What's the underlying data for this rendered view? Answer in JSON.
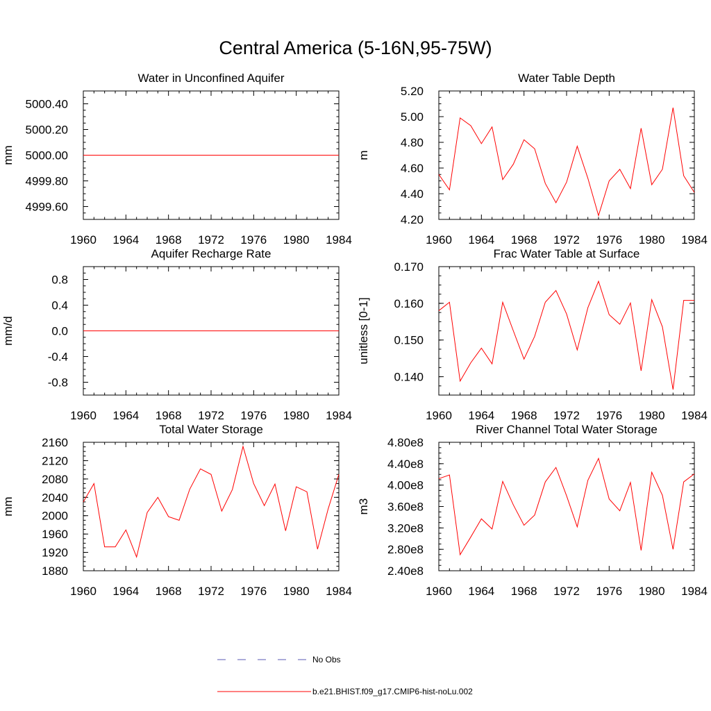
{
  "title": "Central America (5-16N,95-75W)",
  "colors": {
    "model": "#ff0000",
    "obs": "#5a5ab4",
    "axis": "#000000"
  },
  "legend": {
    "placement": "bottom-center",
    "items": [
      {
        "label": "No Obs",
        "style": "dashed",
        "color": "#5a5ab4"
      },
      {
        "label": "b.e21.BHIST.f09_g17.CMIP6-hist-noLu.002",
        "style": "solid",
        "color": "#ff0000"
      }
    ]
  },
  "chart_data": [
    {
      "type": "line",
      "title": "Water in Unconfined Aquifer",
      "ylabel": "mm",
      "xlim": [
        1960,
        1984
      ],
      "ylim": [
        4999.5,
        5000.5
      ],
      "xticks": [
        1960,
        1964,
        1968,
        1972,
        1976,
        1980,
        1984
      ],
      "yticks": [
        4999.6,
        4999.8,
        5000.0,
        5000.2,
        5000.4
      ],
      "ytick_labels": [
        "4999.60",
        "4999.80",
        "5000.00",
        "5000.20",
        "5000.40"
      ],
      "ytick_minor": 0.05,
      "x": [
        1960,
        1961,
        1962,
        1963,
        1964,
        1965,
        1966,
        1967,
        1968,
        1969,
        1970,
        1971,
        1972,
        1973,
        1974,
        1975,
        1976,
        1977,
        1978,
        1979,
        1980,
        1981,
        1982,
        1983,
        1984
      ],
      "series": [
        {
          "values": [
            5000,
            5000,
            5000,
            5000,
            5000,
            5000,
            5000,
            5000,
            5000,
            5000,
            5000,
            5000,
            5000,
            5000,
            5000,
            5000,
            5000,
            5000,
            5000,
            5000,
            5000,
            5000,
            5000,
            5000,
            5000
          ]
        }
      ]
    },
    {
      "type": "line",
      "title": "Water Table Depth",
      "ylabel": "m",
      "xlim": [
        1960,
        1984
      ],
      "ylim": [
        4.2,
        5.2
      ],
      "xticks": [
        1960,
        1964,
        1968,
        1972,
        1976,
        1980,
        1984
      ],
      "yticks": [
        4.2,
        4.4,
        4.6,
        4.8,
        5.0,
        5.2
      ],
      "ytick_labels": [
        "4.20",
        "4.40",
        "4.60",
        "4.80",
        "5.00",
        "5.20"
      ],
      "ytick_minor": 0.05,
      "x": [
        1960,
        1961,
        1962,
        1963,
        1964,
        1965,
        1966,
        1967,
        1968,
        1969,
        1970,
        1971,
        1972,
        1973,
        1974,
        1975,
        1976,
        1977,
        1978,
        1979,
        1980,
        1981,
        1982,
        1983,
        1984
      ],
      "series": [
        {
          "values": [
            4.55,
            4.43,
            4.99,
            4.93,
            4.79,
            4.92,
            4.51,
            4.63,
            4.82,
            4.75,
            4.48,
            4.33,
            4.49,
            4.77,
            4.52,
            4.23,
            4.5,
            4.59,
            4.44,
            4.91,
            4.47,
            4.59,
            5.07,
            4.54,
            4.41
          ]
        }
      ]
    },
    {
      "type": "line",
      "title": "Aquifer Recharge Rate",
      "ylabel": "mm/d",
      "xlim": [
        1960,
        1984
      ],
      "ylim": [
        -1.0,
        1.0
      ],
      "xticks": [
        1960,
        1964,
        1968,
        1972,
        1976,
        1980,
        1984
      ],
      "yticks": [
        -0.8,
        -0.4,
        0.0,
        0.4,
        0.8
      ],
      "ytick_labels": [
        "-0.8",
        "-0.4",
        "0.0",
        "0.4",
        "0.8"
      ],
      "ytick_minor": 0.1,
      "x": [
        1960,
        1961,
        1962,
        1963,
        1964,
        1965,
        1966,
        1967,
        1968,
        1969,
        1970,
        1971,
        1972,
        1973,
        1974,
        1975,
        1976,
        1977,
        1978,
        1979,
        1980,
        1981,
        1982,
        1983,
        1984
      ],
      "series": [
        {
          "values": [
            0,
            0,
            0,
            0,
            0,
            0,
            0,
            0,
            0,
            0,
            0,
            0,
            0,
            0,
            0,
            0,
            0,
            0,
            0,
            0,
            0,
            0,
            0,
            0,
            0
          ]
        }
      ]
    },
    {
      "type": "line",
      "title": "Frac Water Table at Surface",
      "ylabel": "unitless [0-1]",
      "xlim": [
        1960,
        1984
      ],
      "ylim": [
        0.135,
        0.17
      ],
      "xticks": [
        1960,
        1964,
        1968,
        1972,
        1976,
        1980,
        1984
      ],
      "yticks": [
        0.14,
        0.15,
        0.16,
        0.17
      ],
      "ytick_labels": [
        "0.140",
        "0.150",
        "0.160",
        "0.170"
      ],
      "ytick_minor": 0.0025,
      "x": [
        1960,
        1961,
        1962,
        1963,
        1964,
        1965,
        1966,
        1967,
        1968,
        1969,
        1970,
        1971,
        1972,
        1973,
        1974,
        1975,
        1976,
        1977,
        1978,
        1979,
        1980,
        1981,
        1982,
        1983,
        1984
      ],
      "series": [
        {
          "values": [
            0.158,
            0.1603,
            0.1388,
            0.1438,
            0.1478,
            0.1435,
            0.1603,
            0.1525,
            0.1448,
            0.151,
            0.1603,
            0.1635,
            0.1571,
            0.1473,
            0.1588,
            0.166,
            0.1569,
            0.1543,
            0.1601,
            0.1416,
            0.161,
            0.1536,
            0.1365,
            0.1608,
            0.1608
          ]
        }
      ]
    },
    {
      "type": "line",
      "title": "Total Water Storage",
      "ylabel": "mm",
      "xlim": [
        1960,
        1984
      ],
      "ylim": [
        1880,
        2160
      ],
      "xticks": [
        1960,
        1964,
        1968,
        1972,
        1976,
        1980,
        1984
      ],
      "yticks": [
        1880,
        1920,
        1960,
        2000,
        2040,
        2080,
        2120,
        2160
      ],
      "ytick_labels": [
        "1880",
        "1920",
        "1960",
        "2000",
        "2040",
        "2080",
        "2120",
        "2160"
      ],
      "ytick_minor": 10,
      "x": [
        1960,
        1961,
        1962,
        1963,
        1964,
        1965,
        1966,
        1967,
        1968,
        1969,
        1970,
        1971,
        1972,
        1973,
        1974,
        1975,
        1976,
        1977,
        1978,
        1979,
        1980,
        1981,
        1982,
        1983,
        1984
      ],
      "series": [
        {
          "values": [
            2030,
            2070,
            1932,
            1932,
            1969,
            1910,
            2007,
            2040,
            1998,
            1990,
            2058,
            2102,
            2090,
            2010,
            2057,
            2151,
            2070,
            2022,
            2069,
            1967,
            2063,
            2052,
            1927,
            2015,
            2090
          ]
        }
      ]
    },
    {
      "type": "line",
      "title": "River Channel Total Water Storage",
      "ylabel": "m3",
      "xlim": [
        1960,
        1984
      ],
      "ylim": [
        240000000,
        480000000
      ],
      "xticks": [
        1960,
        1964,
        1968,
        1972,
        1976,
        1980,
        1984
      ],
      "yticks": [
        240000000,
        280000000,
        320000000,
        360000000,
        400000000,
        440000000,
        480000000
      ],
      "ytick_labels": [
        "2.40e8",
        "2.80e8",
        "3.20e8",
        "3.60e8",
        "4.00e8",
        "4.40e8",
        "4.80e8"
      ],
      "ytick_minor": 10000000,
      "x": [
        1960,
        1961,
        1962,
        1963,
        1964,
        1965,
        1966,
        1967,
        1968,
        1969,
        1970,
        1971,
        1972,
        1973,
        1974,
        1975,
        1976,
        1977,
        1978,
        1979,
        1980,
        1981,
        1982,
        1983,
        1984
      ],
      "series": [
        {
          "values": [
            412000000,
            419000000,
            270000000,
            303000000,
            337000000,
            318000000,
            407000000,
            363000000,
            325000000,
            344000000,
            406000000,
            433000000,
            380000000,
            322000000,
            409000000,
            450000000,
            374000000,
            352000000,
            405000000,
            278000000,
            424000000,
            381000000,
            280000000,
            406000000,
            421000000
          ]
        }
      ]
    }
  ]
}
